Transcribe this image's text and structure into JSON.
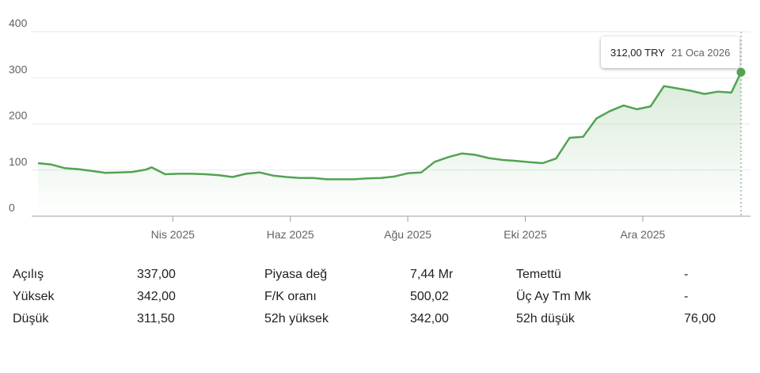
{
  "chart_data": {
    "type": "area",
    "title": "",
    "xlabel": "",
    "ylabel": "",
    "ylim": [
      0,
      400
    ],
    "yticks": [
      "0",
      "100",
      "200",
      "300",
      "400"
    ],
    "xticks": [
      "Nis 2025",
      "Haz 2025",
      "Ağu 2025",
      "Eki 2025",
      "Ara 2025"
    ],
    "grid": true,
    "line_color": "#52a352",
    "fill_color": "#52a352",
    "x": [
      "2025-01-21",
      "2025-01-28",
      "2025-02-04",
      "2025-02-11",
      "2025-02-18",
      "2025-02-25",
      "2025-03-04",
      "2025-03-11",
      "2025-03-18",
      "2025-03-21",
      "2025-03-28",
      "2025-04-04",
      "2025-04-11",
      "2025-04-18",
      "2025-04-25",
      "2025-05-02",
      "2025-05-09",
      "2025-05-16",
      "2025-05-23",
      "2025-05-30",
      "2025-06-06",
      "2025-06-13",
      "2025-06-20",
      "2025-06-27",
      "2025-07-04",
      "2025-07-11",
      "2025-07-18",
      "2025-07-25",
      "2025-08-01",
      "2025-08-08",
      "2025-08-15",
      "2025-08-22",
      "2025-08-29",
      "2025-09-05",
      "2025-09-12",
      "2025-09-19",
      "2025-09-26",
      "2025-10-03",
      "2025-10-10",
      "2025-10-17",
      "2025-10-24",
      "2025-10-31",
      "2025-11-07",
      "2025-11-14",
      "2025-11-21",
      "2025-11-28",
      "2025-12-05",
      "2025-12-12",
      "2025-12-19",
      "2025-12-26",
      "2026-01-02",
      "2026-01-09",
      "2026-01-16",
      "2026-01-21"
    ],
    "series": [
      {
        "values": [
          115,
          112,
          104,
          102,
          98,
          94,
          95,
          96,
          101,
          106,
          91,
          92,
          92,
          91,
          89,
          85,
          92,
          95,
          88,
          85,
          83,
          83,
          80,
          80,
          80,
          82,
          83,
          86,
          93,
          95,
          118,
          128,
          136,
          133,
          126,
          122,
          120,
          117,
          115,
          125,
          170,
          172,
          212,
          228,
          240,
          232,
          238,
          282,
          277,
          272,
          265,
          270,
          268,
          312
        ]
      }
    ]
  },
  "tooltip": {
    "value": "312,00 TRY",
    "date": "21 Oca 2026"
  },
  "stats": [
    {
      "label": "Açılış",
      "value": "337,00",
      "label2": "Piyasa değ",
      "value2": "7,44 Mr",
      "label3": "Temettü",
      "value3": "-"
    },
    {
      "label": "Yüksek",
      "value": "342,00",
      "label2": "F/K oranı",
      "value2": "500,02",
      "label3": "Üç Ay Tm Mk",
      "value3": "-"
    },
    {
      "label": "Düşük",
      "value": "311,50",
      "label2": "52h yüksek",
      "value2": "342,00",
      "label3": "52h düşük",
      "value3": "76,00"
    }
  ]
}
